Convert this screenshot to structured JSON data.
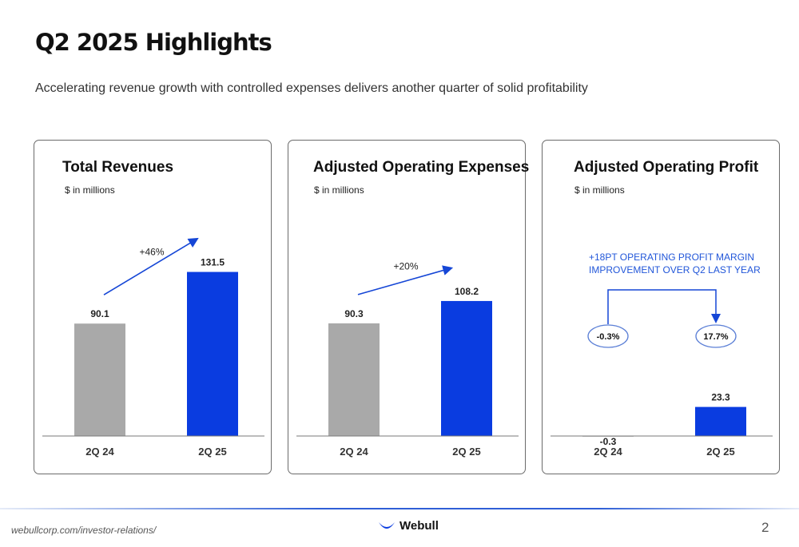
{
  "header": {
    "title": "Q2 2025 Highlights",
    "subtitle": "Accelerating revenue growth with controlled expenses delivers another quarter of solid profitability"
  },
  "colors": {
    "gray_bar": "#a9a9a9",
    "blue_bar": "#0a3ce0",
    "arrow": "#1546d6",
    "annotation_text": "#2156d9"
  },
  "chart_data": [
    {
      "type": "bar",
      "title": "Total Revenues",
      "unit_label": "$ in millions",
      "categories": [
        "2Q 24",
        "2Q 25"
      ],
      "values": [
        90.1,
        131.5
      ],
      "value_labels": [
        "90.1",
        "131.5"
      ],
      "growth_label": "+46%",
      "ylim": [
        0,
        160
      ]
    },
    {
      "type": "bar",
      "title": "Adjusted Operating Expenses",
      "unit_label": "$ in millions",
      "categories": [
        "2Q 24",
        "2Q 25"
      ],
      "values": [
        90.3,
        108.2
      ],
      "value_labels": [
        "90.3",
        "108.2"
      ],
      "growth_label": "+20%",
      "ylim": [
        0,
        160
      ]
    },
    {
      "type": "bar",
      "title": "Adjusted Operating Profit",
      "unit_label": "$ in millions",
      "categories": [
        "2Q 24",
        "2Q 25"
      ],
      "values": [
        -0.3,
        23.3
      ],
      "value_labels": [
        "-0.3",
        "23.3"
      ],
      "margins": [
        "-0.3%",
        "17.7%"
      ],
      "annotation": [
        "+18PT OPERATING PROFIT MARGIN",
        "IMPROVEMENT OVER Q2 LAST YEAR"
      ],
      "ylim": [
        0,
        160
      ]
    }
  ],
  "footer": {
    "url": "webullcorp.com/investor-relations/",
    "logo_text": "Webull",
    "page_number": "2"
  }
}
